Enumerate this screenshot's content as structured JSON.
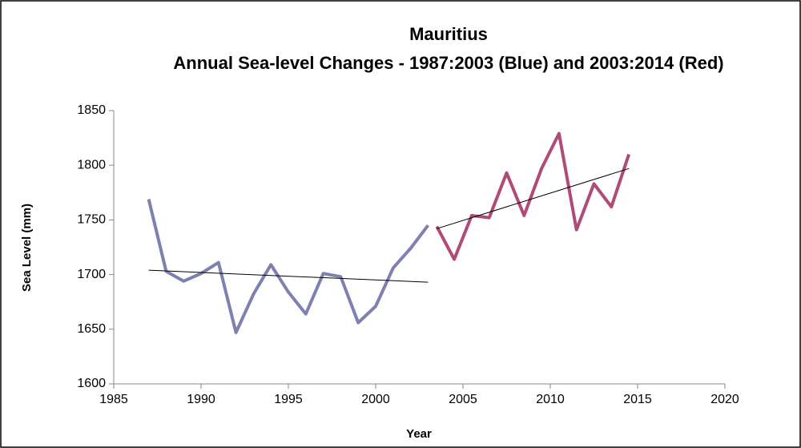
{
  "chart_data": {
    "type": "line",
    "title": [
      "Mauritius",
      "Annual Sea-level Changes - 1987:2003 (Blue) and 2003:2014 (Red)"
    ],
    "xlabel": "Year",
    "ylabel": "Sea Level (mm)",
    "series": [
      {
        "color": "#7e80b0",
        "x": [
          1987,
          1988,
          1989,
          1990,
          1991,
          1992,
          1993,
          1994,
          1995,
          1996,
          1997,
          1998,
          1999,
          2000,
          2001,
          2002,
          2003
        ],
        "values": [
          1769,
          1703,
          1694,
          1701,
          1711,
          1647,
          1682,
          1709,
          1684,
          1664,
          1701,
          1698,
          1656,
          1671,
          1706,
          1724,
          1745
        ]
      },
      {
        "color": "#b04a78",
        "x": [
          2003.5,
          2004.5,
          2005.5,
          2006.5,
          2007.5,
          2008.5,
          2009.5,
          2010.5,
          2011.5,
          2012.5,
          2013.5,
          2014.5
        ],
        "values": [
          1744,
          1714,
          1754,
          1752,
          1793,
          1754,
          1797,
          1829,
          1741,
          1783,
          1762,
          1810
        ]
      }
    ],
    "trendlines": [
      {
        "color": "#000000",
        "x": [
          1987,
          2003
        ],
        "values": [
          1704,
          1693
        ]
      },
      {
        "color": "#000000",
        "x": [
          2003.5,
          2014.5
        ],
        "values": [
          1742,
          1797
        ]
      }
    ],
    "xlim": [
      1985,
      2020
    ],
    "xticks": [
      1985,
      1990,
      1995,
      2000,
      2005,
      2010,
      2015,
      2020
    ],
    "ylim": [
      1600,
      1850
    ],
    "yticks": [
      1600,
      1650,
      1700,
      1750,
      1800,
      1850
    ],
    "grid": false
  }
}
